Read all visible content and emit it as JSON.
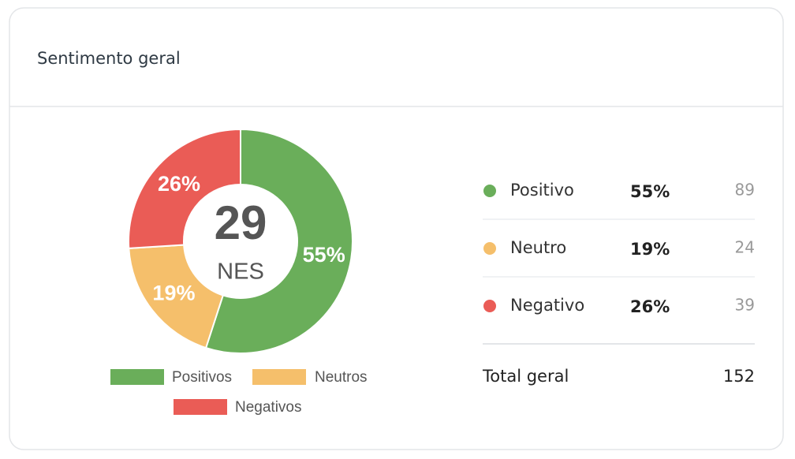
{
  "header": {
    "title": "Sentimento geral"
  },
  "chart_data": {
    "type": "pie",
    "donut": true,
    "categories": [
      "Positivos",
      "Neutros",
      "Negativos"
    ],
    "values": [
      55,
      19,
      26
    ],
    "value_labels": [
      "55%",
      "19%",
      "26%"
    ],
    "colors": [
      "#6aae5a",
      "#f5bf6b",
      "#ea5c56"
    ],
    "center_value": 29,
    "center_label": "NES"
  },
  "table": {
    "rows": [
      {
        "label": "Positivo",
        "percent": "55%",
        "count": 89
      },
      {
        "label": "Neutro",
        "percent": "19%",
        "count": 24
      },
      {
        "label": "Negativo",
        "percent": "26%",
        "count": 39
      }
    ],
    "total": {
      "label": "Total geral",
      "value": 152
    }
  }
}
